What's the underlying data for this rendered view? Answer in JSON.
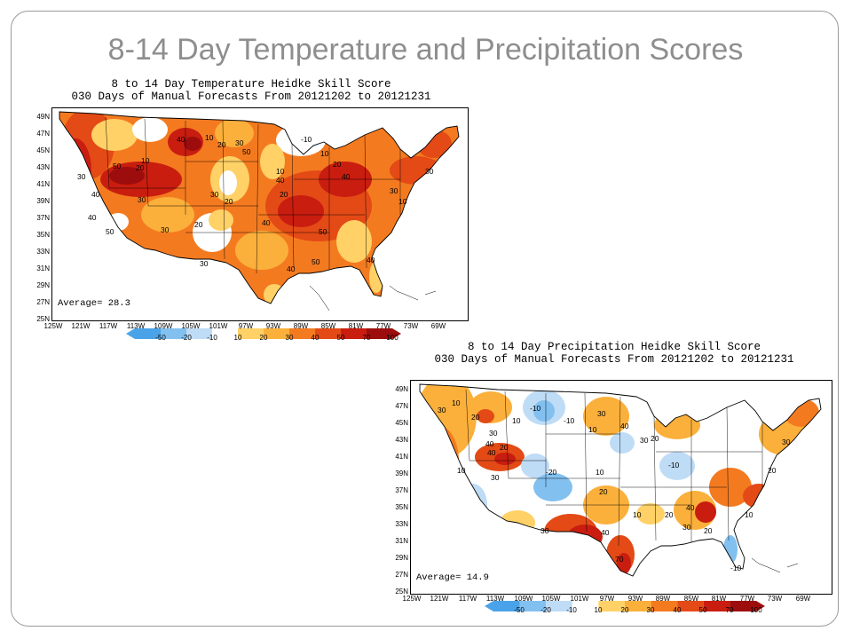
{
  "slide": {
    "title": "8-14 Day Temperature and Precipitation Scores"
  },
  "legend_colors": [
    "#4aa3e8",
    "#82c0f0",
    "#bfdcf6",
    "#ffffff",
    "#ffd166",
    "#fbb03b",
    "#f47a20",
    "#e34a16",
    "#c91d10",
    "#9d0d0d"
  ],
  "temperature_map": {
    "caption_title": "8 to 14 Day Temperature Heidke Skill Score",
    "caption_subtitle": "030 Days of Manual Forecasts From 20121202 to 20121231",
    "average": "Average= 28.3",
    "lat_ticks": [
      "49N",
      "47N",
      "45N",
      "43N",
      "41N",
      "39N",
      "37N",
      "35N",
      "33N",
      "31N",
      "29N",
      "27N",
      "25N"
    ],
    "lon_ticks": [
      "125W",
      "121W",
      "117W",
      "113W",
      "109W",
      "105W",
      "101W",
      "97W",
      "93W",
      "89W",
      "85W",
      "81W",
      "77W",
      "73W",
      "69W"
    ],
    "contour_labels": [
      "30",
      "40",
      "50",
      "40",
      "50",
      "30",
      "10",
      "20",
      "40",
      "10",
      "20",
      "30",
      "30",
      "20",
      "50",
      "-10",
      "10",
      "20",
      "40",
      "40",
      "10",
      "20",
      "50",
      "30",
      "30",
      "10",
      "30",
      "40",
      "50",
      "40",
      "20",
      "30",
      "40"
    ],
    "legend_ticks": [
      "-50",
      "-20",
      "-10",
      "10",
      "20",
      "30",
      "40",
      "50",
      "70",
      "100"
    ]
  },
  "precipitation_map": {
    "caption_title": "8 to 14 Day Precipitation Heidke Skill Score",
    "caption_subtitle": "030 Days of Manual Forecasts From 20121202 to 20121231",
    "average": "Average= 14.9",
    "lat_ticks": [
      "49N",
      "47N",
      "45N",
      "43N",
      "41N",
      "39N",
      "37N",
      "35N",
      "33N",
      "31N",
      "29N",
      "27N",
      "25N"
    ],
    "lon_ticks": [
      "125W",
      "121W",
      "117W",
      "113W",
      "109W",
      "105W",
      "101W",
      "97W",
      "93W",
      "89W",
      "85W",
      "81W",
      "77W",
      "73W",
      "69W"
    ],
    "contour_labels": [
      "30",
      "10",
      "20",
      "-10",
      "30",
      "40",
      "10",
      "-10",
      "30",
      "10",
      "20",
      "40",
      "-20",
      "10",
      "30",
      "40",
      "20",
      "30",
      "-10",
      "10",
      "20",
      "30",
      "40",
      "70",
      "10",
      "20",
      "40",
      "30",
      "20",
      "10",
      "-10",
      "20",
      "30"
    ],
    "legend_ticks": [
      "-50",
      "-20",
      "-10",
      "10",
      "20",
      "30",
      "40",
      "50",
      "70",
      "100"
    ]
  }
}
